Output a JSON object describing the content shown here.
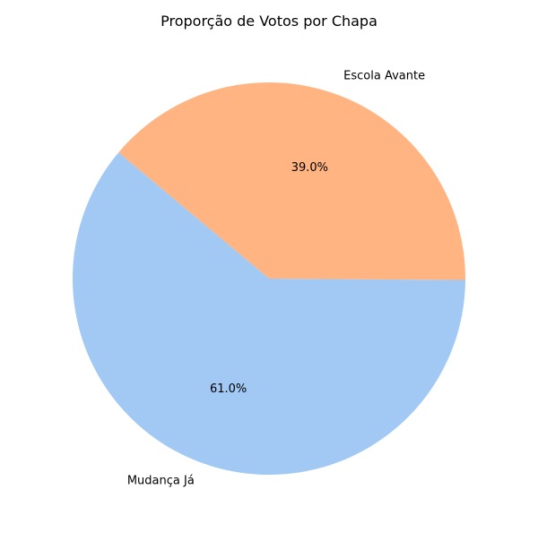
{
  "chart_data": {
    "type": "pie",
    "title": "Proporção de Votos por Chapa",
    "categories": [
      "Mudança Já",
      "Escola Avante"
    ],
    "values": [
      61.0,
      39.0
    ],
    "percent_labels": [
      "61.0%",
      "39.0%"
    ],
    "colors": [
      "#a1c9f4",
      "#ffb482"
    ],
    "legend": "none",
    "grid": false
  }
}
